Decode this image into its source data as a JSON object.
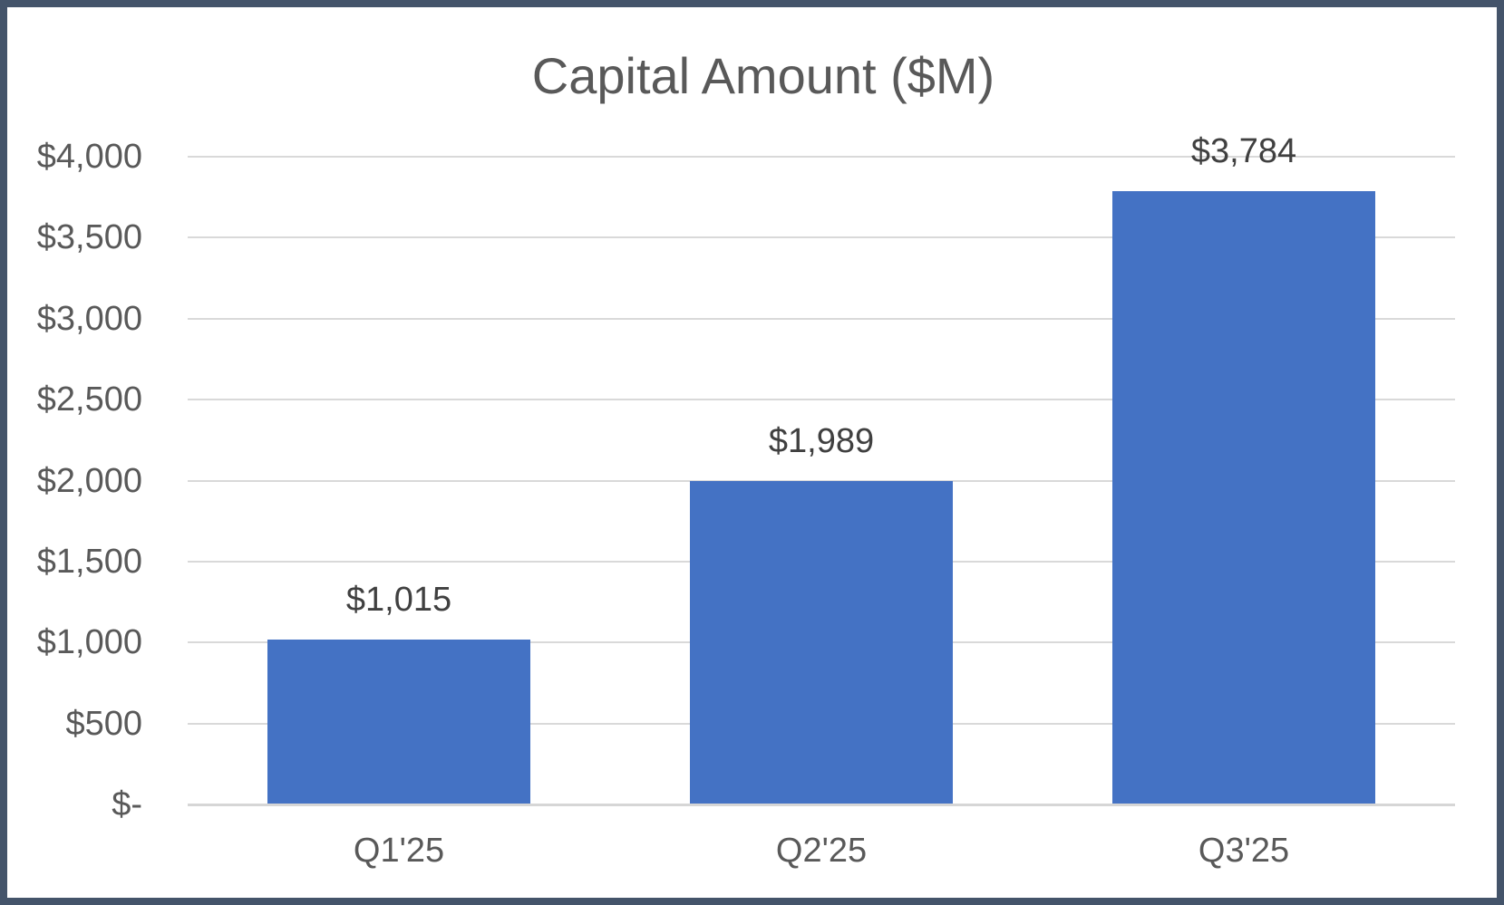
{
  "chart_data": {
    "type": "bar",
    "title": "Capital Amount ($M)",
    "categories": [
      "Q1'25",
      "Q2'25",
      "Q3'25"
    ],
    "values": [
      1015,
      1989,
      3784
    ],
    "data_labels": [
      "$1,015",
      "$1,989",
      "$3,784"
    ],
    "xlabel": "",
    "ylabel": "",
    "ylim": [
      0,
      4000
    ],
    "y_tick_step": 500,
    "y_ticks": [
      0,
      500,
      1000,
      1500,
      2000,
      2500,
      3000,
      3500,
      4000
    ],
    "y_tick_labels": [
      "$-",
      "$500",
      "$1,000",
      "$1,500",
      "$2,000",
      "$2,500",
      "$3,000",
      "$3,500",
      "$4,000"
    ],
    "grid": true,
    "legend": false,
    "data_label_position": "outside-end"
  },
  "colors": {
    "bar": "#4472C4",
    "frame_border": "#44546A",
    "gridline": "#D9D9D9",
    "axis_line": "#D6D6D6",
    "title_text": "#595959",
    "axis_text": "#595959",
    "data_label_text": "#404040",
    "background": "#FFFFFF"
  }
}
